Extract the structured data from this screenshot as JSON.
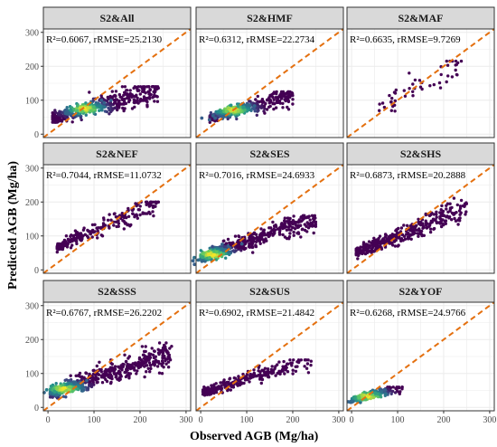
{
  "figure": {
    "xlabel": "Observed AGB (Mg/ha)",
    "ylabel": "Predicted AGB (Mg/ha)"
  },
  "colors": {
    "panel_border": "#333333",
    "strip_fill": "#d9d9d9",
    "grid": "#ebebeb",
    "one_to_one_line": "#e4700f",
    "low_density": "#440154",
    "mid_density": "#21908c",
    "high_density": "#fde725"
  },
  "chart_data": [
    {
      "type": "scatter",
      "title": "S2&All",
      "stat": "R²=0.6067, rRMSE=25.2130",
      "xlim": [
        -10,
        310
      ],
      "ylim": [
        -10,
        310
      ],
      "xticks": [
        0,
        100,
        200,
        300
      ],
      "yticks": [
        0,
        100,
        200,
        300
      ],
      "one_to_one": true,
      "xticks_shown": false,
      "yticks_shown": true,
      "clusters": [
        {
          "x": [
            10,
            240
          ],
          "y": [
            35,
            140
          ],
          "slope": 0.35,
          "intercept": 45,
          "spread": 14,
          "n": 420,
          "core": [
            80,
            75
          ]
        }
      ]
    },
    {
      "type": "scatter",
      "title": "S2&HMF",
      "stat": "R²=0.6312, rRMSE=22.2734",
      "xlim": [
        -10,
        310
      ],
      "ylim": [
        -10,
        310
      ],
      "xticks": [
        0,
        100,
        200,
        300
      ],
      "yticks": [
        0,
        100,
        200,
        300
      ],
      "one_to_one": true,
      "xticks_shown": false,
      "yticks_shown": false,
      "clusters": [
        {
          "x": [
            20,
            200
          ],
          "y": [
            25,
            125
          ],
          "slope": 0.38,
          "intercept": 40,
          "spread": 10,
          "n": 360,
          "core": [
            70,
            72
          ]
        }
      ]
    },
    {
      "type": "scatter",
      "title": "S2&MAF",
      "stat": "R²=0.6635, rRMSE=9.7269",
      "xlim": [
        -10,
        310
      ],
      "ylim": [
        -10,
        310
      ],
      "xticks": [
        0,
        100,
        200,
        300
      ],
      "yticks": [
        0,
        100,
        200,
        300
      ],
      "one_to_one": true,
      "xticks_shown": false,
      "yticks_shown": false,
      "clusters": [
        {
          "x": [
            60,
            240
          ],
          "y": [
            60,
            215
          ],
          "slope": 0.72,
          "intercept": 35,
          "spread": 18,
          "n": 50,
          "core": null
        }
      ]
    },
    {
      "type": "scatter",
      "title": "S2&NEF",
      "stat": "R²=0.7044, rRMSE=11.0732",
      "xlim": [
        -10,
        310
      ],
      "ylim": [
        -10,
        310
      ],
      "xticks": [
        0,
        100,
        200,
        300
      ],
      "yticks": [
        0,
        100,
        200,
        300
      ],
      "one_to_one": true,
      "xticks_shown": false,
      "yticks_shown": true,
      "clusters": [
        {
          "x": [
            20,
            240
          ],
          "y": [
            50,
            200
          ],
          "slope": 0.6,
          "intercept": 55,
          "spread": 12,
          "n": 260,
          "core": null
        }
      ]
    },
    {
      "type": "scatter",
      "title": "S2&SES",
      "stat": "R²=0.7016, rRMSE=24.6933",
      "xlim": [
        -10,
        310
      ],
      "ylim": [
        -10,
        310
      ],
      "xticks": [
        0,
        100,
        200,
        300
      ],
      "yticks": [
        0,
        100,
        200,
        300
      ],
      "one_to_one": true,
      "xticks_shown": false,
      "yticks_shown": false,
      "clusters": [
        {
          "x": [
            0,
            250
          ],
          "y": [
            30,
            160
          ],
          "slope": 0.48,
          "intercept": 35,
          "spread": 13,
          "n": 520,
          "core": [
            25,
            45
          ]
        }
      ]
    },
    {
      "type": "scatter",
      "title": "S2&SHS",
      "stat": "R²=0.6873, rRMSE=20.2888",
      "xlim": [
        -10,
        310
      ],
      "ylim": [
        -10,
        310
      ],
      "xticks": [
        0,
        100,
        200,
        300
      ],
      "yticks": [
        0,
        100,
        200,
        300
      ],
      "one_to_one": true,
      "xticks_shown": false,
      "yticks_shown": false,
      "clusters": [
        {
          "x": [
            10,
            250
          ],
          "y": [
            30,
            215
          ],
          "slope": 0.55,
          "intercept": 45,
          "spread": 14,
          "n": 380,
          "core": null
        }
      ]
    },
    {
      "type": "scatter",
      "title": "S2&SSS",
      "stat": "R²=0.6767, rRMSE=26.2202",
      "xlim": [
        -10,
        310
      ],
      "ylim": [
        -10,
        310
      ],
      "xticks": [
        0,
        100,
        200,
        300
      ],
      "yticks": [
        0,
        100,
        200,
        300
      ],
      "one_to_one": true,
      "xticks_shown": true,
      "yticks_shown": true,
      "clusters": [
        {
          "x": [
            5,
            270
          ],
          "y": [
            25,
            190
          ],
          "slope": 0.45,
          "intercept": 40,
          "spread": 14,
          "n": 520,
          "core": [
            35,
            55
          ]
        }
      ]
    },
    {
      "type": "scatter",
      "title": "S2&SUS",
      "stat": "R²=0.6902, rRMSE=21.4842",
      "xlim": [
        -10,
        310
      ],
      "ylim": [
        -10,
        310
      ],
      "xticks": [
        0,
        100,
        200,
        300
      ],
      "yticks": [
        0,
        100,
        200,
        300
      ],
      "one_to_one": true,
      "xticks_shown": true,
      "yticks_shown": false,
      "clusters": [
        {
          "x": [
            5,
            240
          ],
          "y": [
            35,
            140
          ],
          "slope": 0.42,
          "intercept": 42,
          "spread": 10,
          "n": 260,
          "core": null
        }
      ]
    },
    {
      "type": "scatter",
      "title": "S2&YOF",
      "stat": "R²=0.6268, rRMSE=24.9766",
      "xlim": [
        -10,
        310
      ],
      "ylim": [
        -10,
        310
      ],
      "xticks": [
        0,
        100,
        200,
        300
      ],
      "yticks": [
        0,
        100,
        200,
        300
      ],
      "one_to_one": true,
      "xticks_shown": true,
      "yticks_shown": false,
      "clusters": [
        {
          "x": [
            0,
            110
          ],
          "y": [
            15,
            60
          ],
          "slope": 0.35,
          "intercept": 22,
          "spread": 6,
          "n": 160,
          "core": [
            35,
            32
          ]
        }
      ]
    }
  ]
}
